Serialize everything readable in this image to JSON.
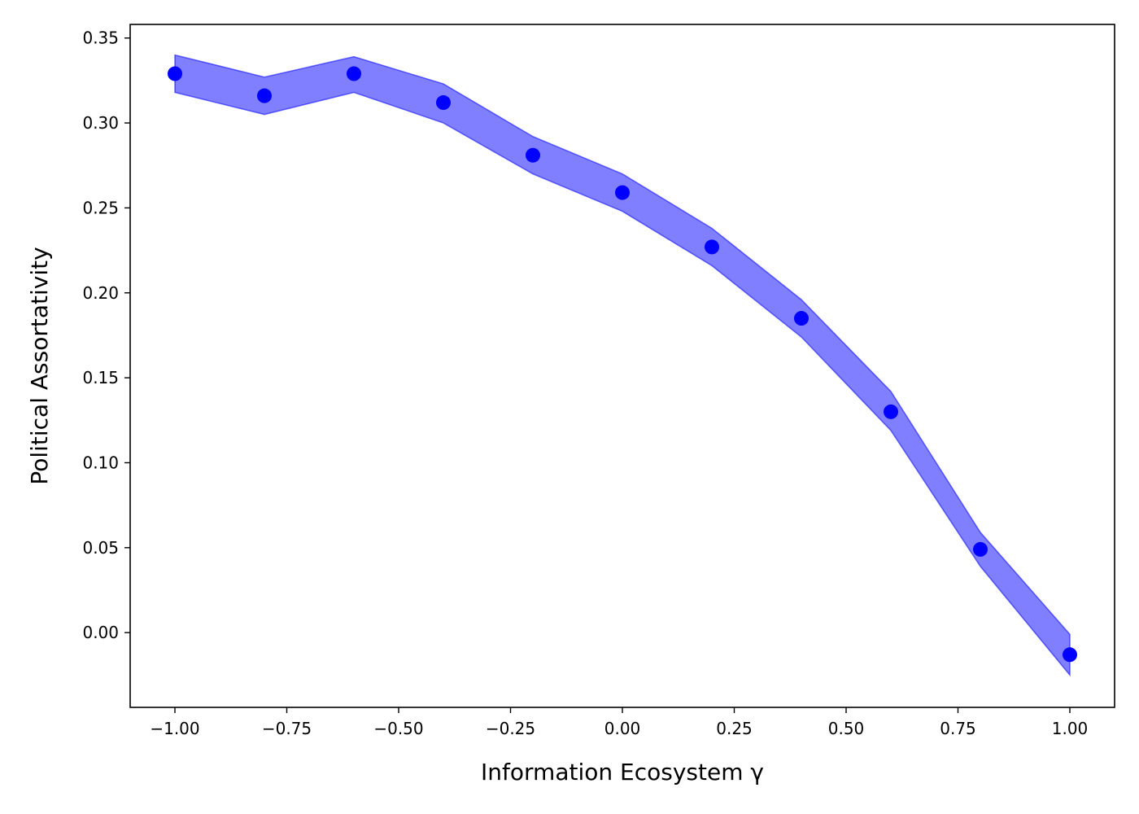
{
  "chart_data": {
    "type": "scatter",
    "xlabel": "Information Ecosystem γ",
    "ylabel": "Political Assortativity",
    "xlim": [
      -1.1,
      1.1
    ],
    "ylim": [
      -0.044,
      0.358
    ],
    "xticks": [
      -1.0,
      -0.75,
      -0.5,
      -0.25,
      0.0,
      0.25,
      0.5,
      0.75,
      1.0
    ],
    "xtick_labels": [
      "−1.00",
      "−0.75",
      "−0.50",
      "−0.25",
      "0.00",
      "0.25",
      "0.50",
      "0.75",
      "1.00"
    ],
    "yticks": [
      0.0,
      0.05,
      0.1,
      0.15,
      0.2,
      0.25,
      0.3,
      0.35
    ],
    "ytick_labels": [
      "0.00",
      "0.05",
      "0.10",
      "0.15",
      "0.20",
      "0.25",
      "0.30",
      "0.35"
    ],
    "grid": false,
    "colors": {
      "points": "#0000ff",
      "band": "#0000ff",
      "band_opacity": 0.5
    },
    "series": [
      {
        "x": [
          -1.0,
          -0.8,
          -0.6,
          -0.4,
          -0.2,
          0.0,
          0.2,
          0.4,
          0.6,
          0.8,
          1.0
        ],
        "y": [
          0.329,
          0.316,
          0.329,
          0.312,
          0.281,
          0.259,
          0.227,
          0.185,
          0.13,
          0.049,
          -0.013
        ],
        "lower": [
          0.318,
          0.305,
          0.318,
          0.3,
          0.27,
          0.248,
          0.216,
          0.174,
          0.119,
          0.039,
          -0.025
        ],
        "upper": [
          0.34,
          0.327,
          0.339,
          0.323,
          0.292,
          0.27,
          0.238,
          0.196,
          0.142,
          0.059,
          -0.001
        ]
      }
    ]
  }
}
